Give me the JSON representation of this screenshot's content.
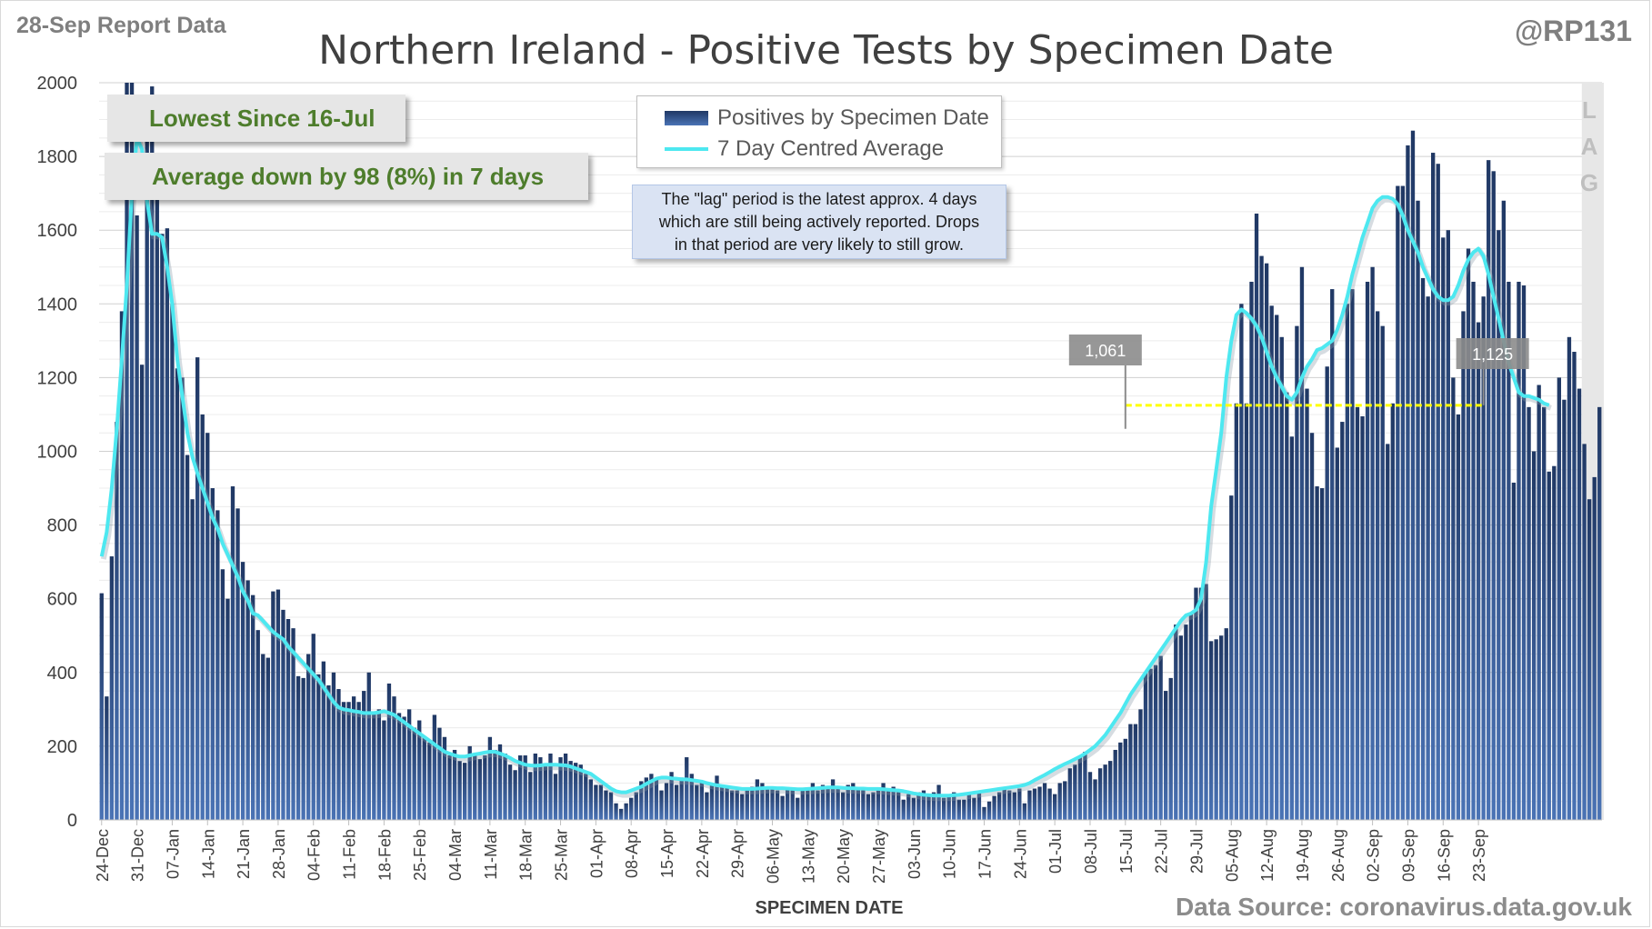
{
  "header": {
    "report_label": "28-Sep Report Data",
    "title": "Northern Ireland - Positive Tests by Specimen Date",
    "handle": "@RP131",
    "source": "Data Source: coronavirus.data.gov.uk"
  },
  "callouts": {
    "lowest": "Lowest Since 16-Jul",
    "average": "Average down by 98 (8%) in 7 days",
    "note_lines": [
      "The \"lag\" period is the latest approx. 4 days",
      "which are still being actively reported. Drops",
      "in that period are very likely to still grow."
    ]
  },
  "lag_label": [
    "L",
    "A",
    "G"
  ],
  "colors": {
    "bar_dark": "#203864",
    "bar_light": "#4a73b5",
    "average_line": "#4de8f0",
    "reference_line": "#ffff00",
    "callout_text": "#4e7d2c"
  },
  "chart_data": {
    "type": "bar",
    "xlabel": "SPECIMEN DATE",
    "ylabel": "",
    "ylim": [
      0,
      2000
    ],
    "yticks": [
      0,
      200,
      400,
      600,
      800,
      1000,
      1200,
      1400,
      1600,
      1800,
      2000
    ],
    "grid": true,
    "legend_position": "top-center",
    "x_start": "24-Dec",
    "x_end": "27-Sep",
    "x_tick_labels": [
      "24-Dec",
      "31-Dec",
      "07-Jan",
      "14-Jan",
      "21-Jan",
      "28-Jan",
      "04-Feb",
      "11-Feb",
      "18-Feb",
      "25-Feb",
      "04-Mar",
      "11-Mar",
      "18-Mar",
      "25-Mar",
      "01-Apr",
      "08-Apr",
      "15-Apr",
      "22-Apr",
      "29-Apr",
      "06-May",
      "13-May",
      "20-May",
      "27-May",
      "03-Jun",
      "10-Jun",
      "17-Jun",
      "24-Jun",
      "01-Jul",
      "08-Jul",
      "15-Jul",
      "22-Jul",
      "29-Jul",
      "05-Aug",
      "12-Aug",
      "19-Aug",
      "26-Aug",
      "02-Sep",
      "09-Sep",
      "16-Sep",
      "23-Sep"
    ],
    "series": [
      {
        "name": "Positives by Specimen Date",
        "type": "bar",
        "values": [
          615,
          335,
          715,
          1080,
          1380,
          2000,
          2000,
          1640,
          1235,
          1850,
          1990,
          1700,
          1590,
          1605,
          1400,
          1225,
          1200,
          990,
          870,
          1255,
          1100,
          1050,
          900,
          840,
          680,
          600,
          905,
          845,
          700,
          650,
          610,
          515,
          450,
          440,
          620,
          625,
          570,
          545,
          520,
          390,
          385,
          450,
          505,
          395,
          430,
          365,
          400,
          355,
          320,
          320,
          335,
          320,
          350,
          400,
          290,
          300,
          270,
          370,
          335,
          290,
          280,
          300,
          250,
          270,
          225,
          210,
          285,
          250,
          225,
          175,
          190,
          160,
          155,
          200,
          175,
          165,
          175,
          225,
          190,
          205,
          180,
          150,
          135,
          175,
          175,
          130,
          180,
          170,
          145,
          180,
          125,
          170,
          180,
          160,
          155,
          150,
          125,
          110,
          95,
          95,
          80,
          75,
          45,
          30,
          45,
          60,
          75,
          105,
          115,
          125,
          115,
          80,
          100,
          130,
          95,
          115,
          170,
          125,
          95,
          100,
          75,
          95,
          120,
          95,
          90,
          80,
          80,
          70,
          80,
          90,
          110,
          100,
          85,
          85,
          80,
          65,
          85,
          80,
          60,
          80,
          80,
          100,
          80,
          95,
          90,
          110,
          90,
          75,
          95,
          100,
          90,
          80,
          70,
          75,
          80,
          100,
          85,
          90,
          75,
          55,
          70,
          60,
          75,
          80,
          65,
          75,
          95,
          60,
          70,
          75,
          55,
          55,
          75,
          60,
          75,
          35,
          50,
          65,
          75,
          90,
          80,
          75,
          85,
          45,
          80,
          85,
          90,
          100,
          85,
          70,
          100,
          105,
          140,
          150,
          170,
          185,
          130,
          110,
          140,
          150,
          160,
          190,
          210,
          220,
          260,
          260,
          300,
          400,
          410,
          420,
          445,
          350,
          385,
          530,
          500,
          530,
          560,
          630,
          630,
          640,
          485,
          490,
          500,
          520,
          880,
          1130,
          1400,
          1130,
          1460,
          1645,
          1530,
          1510,
          1395,
          1370,
          1310,
          1160,
          1040,
          1340,
          1500,
          1170,
          1050,
          905,
          900,
          1230,
          1440,
          1010,
          1080,
          1400,
          1440,
          1120,
          1095,
          1460,
          1500,
          1380,
          1340,
          1020,
          1130,
          1720,
          1720,
          1830,
          1870,
          1680,
          1470,
          1420,
          1810,
          1780,
          1580,
          1600,
          1200,
          1100,
          1380,
          1550,
          1460,
          1350,
          1420,
          1790,
          1760,
          1600,
          1680,
          1460,
          915,
          1460,
          1450,
          1120,
          1000,
          1180,
          1120,
          945,
          960,
          1200,
          1140,
          1310,
          1270,
          1170,
          1020,
          870,
          930,
          1120
        ]
      },
      {
        "name": "7 Day Centred Average",
        "type": "line",
        "values": [
          715,
          780,
          900,
          1060,
          1250,
          1450,
          1700,
          1850,
          1820,
          1680,
          1590,
          1590,
          1580,
          1500,
          1400,
          1250,
          1150,
          1050,
          985,
          940,
          900,
          860,
          820,
          790,
          750,
          720,
          690,
          660,
          620,
          595,
          560,
          555,
          540,
          525,
          510,
          500,
          490,
          470,
          455,
          440,
          425,
          410,
          395,
          380,
          360,
          340,
          320,
          305,
          300,
          298,
          295,
          293,
          290,
          290,
          290,
          292,
          295,
          290,
          285,
          275,
          265,
          255,
          245,
          235,
          225,
          215,
          205,
          195,
          185,
          180,
          175,
          172,
          172,
          175,
          178,
          180,
          183,
          185,
          185,
          180,
          175,
          168,
          160,
          155,
          150,
          148,
          147,
          148,
          150,
          150,
          150,
          149,
          148,
          145,
          140,
          135,
          130,
          125,
          115,
          105,
          95,
          85,
          78,
          75,
          75,
          80,
          85,
          90,
          98,
          105,
          112,
          115,
          115,
          113,
          112,
          110,
          110,
          108,
          106,
          104,
          100,
          97,
          94,
          92,
          90,
          88,
          86,
          84,
          84,
          84,
          85,
          86,
          87,
          87,
          86,
          86,
          85,
          84,
          83,
          83,
          84,
          85,
          86,
          87,
          88,
          88,
          88,
          87,
          86,
          86,
          85,
          85,
          84,
          84,
          84,
          83,
          82,
          81,
          80,
          78,
          75,
          72,
          70,
          68,
          67,
          66,
          66,
          66,
          66,
          67,
          68,
          70,
          72,
          74,
          76,
          78,
          80,
          82,
          84,
          86,
          88,
          90,
          92,
          95,
          100,
          108,
          115,
          122,
          130,
          138,
          145,
          152,
          158,
          165,
          172,
          180,
          190,
          200,
          215,
          230,
          250,
          270,
          290,
          315,
          340,
          360,
          380,
          400,
          420,
          440,
          460,
          480,
          500,
          520,
          540,
          555,
          560,
          570,
          600,
          700,
          850,
          950,
          1050,
          1200,
          1300,
          1370,
          1385,
          1375,
          1360,
          1340,
          1310,
          1270,
          1230,
          1200,
          1175,
          1150,
          1140,
          1160,
          1200,
          1230,
          1250,
          1275,
          1280,
          1290,
          1300,
          1330,
          1370,
          1420,
          1480,
          1530,
          1580,
          1620,
          1660,
          1680,
          1690,
          1690,
          1685,
          1670,
          1640,
          1600,
          1570,
          1540,
          1500,
          1470,
          1440,
          1420,
          1410,
          1410,
          1420,
          1450,
          1490,
          1520,
          1540,
          1550,
          1530,
          1480,
          1420,
          1360,
          1300,
          1240,
          1200,
          1160,
          1150,
          1150,
          1145,
          1140,
          1130,
          1125
        ]
      }
    ],
    "annotations": [
      {
        "label": "1,061",
        "x": "15-Jul",
        "y": 1061
      },
      {
        "label": "1,125",
        "x": "24-Sep",
        "y": 1125
      }
    ],
    "reference_line": {
      "y": 1125,
      "from": "15-Jul",
      "to": "24-Sep"
    },
    "lag_period": {
      "from": "25-Sep",
      "to": "28-Sep"
    }
  }
}
